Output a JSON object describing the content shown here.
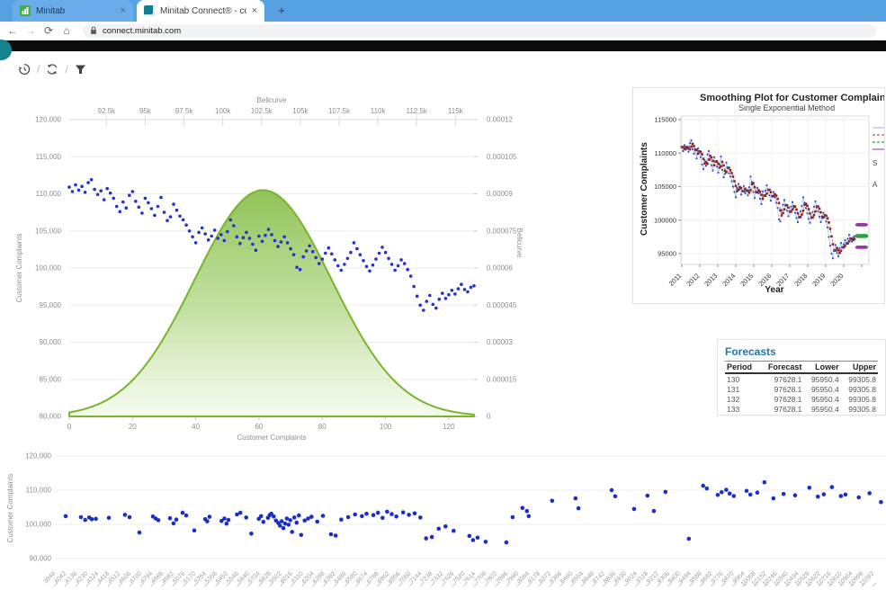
{
  "browser": {
    "tabs": [
      {
        "title": "Minitab"
      },
      {
        "title": "Minitab Connect® - connect.min"
      }
    ],
    "new_tab_label": "+",
    "close_glyph": "×",
    "url": "connect.minitab.com",
    "icons": {
      "back": "←",
      "forward": "→",
      "reload": "⟳",
      "home": "⌂",
      "lock": "lock-icon"
    }
  },
  "toolbar": {
    "icons": [
      "history",
      "refresh",
      "filter"
    ],
    "separator": "/"
  },
  "colors": {
    "tabstrip": "#57a1e3",
    "scatter_point": "#2433c8",
    "bell_stroke": "#79b42e",
    "bell_fill_top": "#8cc152",
    "bell_fill_bottom": "#eef6e2",
    "actual_point": "#2c50c8",
    "fit_point": "#8e2020",
    "forecast_point": "#2f9e44",
    "pi_point": "#9933aa",
    "forecast_title": "#1878be"
  },
  "chart_data": [
    {
      "type": "scatter",
      "name": "bellcurve-and-complaints-scatter",
      "x_top": {
        "label": "Bellcurve",
        "tick_labels": [
          "92.5k",
          "95k",
          "97.5k",
          "100k",
          "102.5k",
          "105k",
          "107.5k",
          "110k",
          "112.5k",
          "115k"
        ],
        "range": [
          90100,
          116200
        ]
      },
      "x_bottom": {
        "label": "Customer Complaints",
        "tick_labels": [
          "0",
          "20",
          "40",
          "60",
          "80",
          "100",
          "120"
        ],
        "range": [
          0,
          128
        ]
      },
      "y_left": {
        "label": "Customer Complaints",
        "tick_labels": [
          "120,000",
          "115,000",
          "110,000",
          "105,000",
          "100,000",
          "95,000",
          "90,000",
          "85,000",
          "80,000"
        ],
        "range": [
          80000,
          120000
        ]
      },
      "y_right": {
        "label": "Bellcurve",
        "tick_labels": [
          "0.00012",
          "0.000105",
          "0.00009",
          "0.000075",
          "0.00006",
          "0.000045",
          "0.00003",
          "0.000015",
          "0"
        ],
        "range": [
          0,
          0.00012
        ]
      },
      "bellcurve": {
        "mean": 102600,
        "sd": 4400,
        "peak_density": 9.15e-05
      },
      "series": {
        "name": "Customer Complaints",
        "values": [
          110900,
          110300,
          111200,
          110500,
          111000,
          110200,
          111500,
          111900,
          110600,
          109900,
          110400,
          109200,
          110700,
          110100,
          109400,
          108300,
          107600,
          108900,
          108100,
          109800,
          110300,
          109000,
          108200,
          107400,
          109400,
          108800,
          108000,
          107100,
          108300,
          109500,
          107500,
          106400,
          106900,
          108600,
          107800,
          107000,
          106500,
          105800,
          105000,
          104200,
          103400,
          104800,
          105400,
          104600,
          103800,
          104300,
          105100,
          104000,
          104500,
          103700,
          104900,
          106500,
          105700,
          104200,
          103300,
          104100,
          104800,
          104000,
          103200,
          102400,
          104300,
          103600,
          104400,
          105200,
          104500,
          103700,
          102900,
          103500,
          104200,
          103400,
          102600,
          101800,
          100100,
          99800,
          101500,
          102300,
          103000,
          102200,
          101400,
          100600,
          101200,
          102000,
          102700,
          101900,
          101100,
          100300,
          99700,
          100500,
          101300,
          102100,
          103400,
          102600,
          101800,
          101000,
          100200,
          99600,
          100400,
          101200,
          102000,
          102800,
          102100,
          101300,
          100500,
          99700,
          100300,
          101100,
          100600,
          99800,
          98900,
          97500,
          96200,
          95000,
          94300,
          95500,
          96300,
          95100,
          94600,
          95800,
          96600,
          95900,
          96400,
          97000,
          96500,
          97200,
          97800,
          97100,
          96800,
          97400,
          97600
        ]
      }
    },
    {
      "type": "line",
      "name": "smoothing-plot",
      "title": "Smoothing Plot for Customer Complaints",
      "subtitle": "Single Exponential Method",
      "xlabel": "Year",
      "ylabel": "Customer Complaints",
      "x_ticks": [
        "2011",
        "2012",
        "2013",
        "2014",
        "2015",
        "2016",
        "2017",
        "2018",
        "2019",
        "2020"
      ],
      "y_ticks": [
        "95000",
        "100000",
        "105000",
        "110000",
        "115000"
      ],
      "series_source": "chart_data.0.series",
      "fits_method": "single_exponential",
      "forecasts": {
        "periods": [
          130,
          131,
          132,
          133
        ],
        "value": 97628.1,
        "lower": 95950.4,
        "upper": 99305.8
      },
      "legend_fragments": [
        "S",
        "A"
      ],
      "legend_colors": [
        "#a9c4e4",
        "#c0504d",
        "#3f9c3f",
        "#a050c8"
      ]
    },
    {
      "type": "table",
      "name": "forecasts-table",
      "title": "Forecasts",
      "columns": [
        "Period",
        "Forecast",
        "Lower",
        "Upper"
      ],
      "rows": [
        [
          "130",
          "97628.1",
          "95950.4",
          "99305.8"
        ],
        [
          "131",
          "97628.1",
          "95950.4",
          "99305.8"
        ],
        [
          "132",
          "97628.1",
          "95950.4",
          "99305.8"
        ],
        [
          "133",
          "97628.1",
          "95950.4",
          "99305.8"
        ]
      ]
    },
    {
      "type": "scatter",
      "name": "bottom-complaints-scatter",
      "ylabel": "Customer Complaints",
      "y_tick_labels": [
        "120,000",
        "110,000",
        "100,000",
        "90,000"
      ],
      "x_tick_labels": [
        3948,
        4042,
        4136,
        4230,
        4324,
        4418,
        4512,
        4606,
        4700,
        4794,
        4888,
        4982,
        5076,
        5170,
        5264,
        5358,
        5452,
        5546,
        5640,
        5734,
        5828,
        5922,
        6016,
        6110,
        6204,
        6298,
        6392,
        6486,
        6580,
        6674,
        6768,
        6862,
        6956,
        7050,
        7144,
        7238,
        7332,
        7426,
        7520,
        7614,
        7708,
        7802,
        7896,
        7990,
        8084,
        8178,
        8272,
        8366,
        8460,
        8554,
        8648,
        8742,
        8836,
        8930,
        9024,
        9118,
        9212,
        9306,
        9400,
        9494,
        9588,
        9682,
        9776,
        9870,
        9964,
        10058,
        10152,
        10246,
        10340,
        10434,
        10528,
        10622,
        10716,
        10810,
        10904,
        10998,
        11092
      ],
      "points": [
        [
          4034,
          102400
        ],
        [
          4168,
          102100
        ],
        [
          4205,
          101300
        ],
        [
          4240,
          102000
        ],
        [
          4262,
          101500
        ],
        [
          4298,
          101600
        ],
        [
          4411,
          101900
        ],
        [
          4552,
          102800
        ],
        [
          4592,
          102100
        ],
        [
          4678,
          97600
        ],
        [
          4796,
          102300
        ],
        [
          4820,
          101700
        ],
        [
          4843,
          101200
        ],
        [
          4945,
          101800
        ],
        [
          4976,
          100300
        ],
        [
          5000,
          101400
        ],
        [
          5055,
          103400
        ],
        [
          5086,
          102600
        ],
        [
          5157,
          98200
        ],
        [
          5252,
          101500
        ],
        [
          5270,
          100900
        ],
        [
          5290,
          102200
        ],
        [
          5395,
          101000
        ],
        [
          5420,
          101700
        ],
        [
          5438,
          100200
        ],
        [
          5455,
          101300
        ],
        [
          5530,
          102900
        ],
        [
          5560,
          103400
        ],
        [
          5610,
          102000
        ],
        [
          5655,
          97300
        ],
        [
          5720,
          101600
        ],
        [
          5740,
          102400
        ],
        [
          5760,
          100700
        ],
        [
          5800,
          101900
        ],
        [
          5815,
          102700
        ],
        [
          5830,
          103100
        ],
        [
          5850,
          102300
        ],
        [
          5870,
          101100
        ],
        [
          5890,
          100400
        ],
        [
          5905,
          99600
        ],
        [
          5920,
          100900
        ],
        [
          5935,
          98900
        ],
        [
          5950,
          100200
        ],
        [
          5965,
          101700
        ],
        [
          5980,
          99900
        ],
        [
          5995,
          101200
        ],
        [
          6010,
          97800
        ],
        [
          6030,
          102000
        ],
        [
          6050,
          100500
        ],
        [
          6070,
          102600
        ],
        [
          6090,
          96900
        ],
        [
          6120,
          101100
        ],
        [
          6150,
          101700
        ],
        [
          6180,
          102200
        ],
        [
          6230,
          100800
        ],
        [
          6280,
          102500
        ],
        [
          6350,
          97100
        ],
        [
          6390,
          96700
        ],
        [
          6440,
          101400
        ],
        [
          6500,
          102100
        ],
        [
          6560,
          102900
        ],
        [
          6620,
          102400
        ],
        [
          6660,
          103100
        ],
        [
          6720,
          102700
        ],
        [
          6760,
          103400
        ],
        [
          6800,
          101900
        ],
        [
          6840,
          103700
        ],
        [
          6880,
          103000
        ],
        [
          6920,
          102300
        ],
        [
          6980,
          103500
        ],
        [
          7030,
          102800
        ],
        [
          7080,
          103200
        ],
        [
          7130,
          102000
        ],
        [
          7180,
          95900
        ],
        [
          7230,
          96300
        ],
        [
          7290,
          98700
        ],
        [
          7350,
          99400
        ],
        [
          7420,
          98100
        ],
        [
          7558,
          96600
        ],
        [
          7590,
          95400
        ],
        [
          7629,
          96100
        ],
        [
          7700,
          94900
        ],
        [
          7880,
          94700
        ],
        [
          7935,
          102100
        ],
        [
          8021,
          104800
        ],
        [
          8060,
          103900
        ],
        [
          8076,
          102400
        ],
        [
          8280,
          106900
        ],
        [
          8484,
          107600
        ],
        [
          8510,
          104700
        ],
        [
          8800,
          110000
        ],
        [
          8830,
          108200
        ],
        [
          8995,
          104500
        ],
        [
          9112,
          108400
        ],
        [
          9168,
          103900
        ],
        [
          9269,
          109500
        ],
        [
          9473,
          95800
        ],
        [
          9598,
          111300
        ],
        [
          9630,
          110500
        ],
        [
          9725,
          108600
        ],
        [
          9760,
          109400
        ],
        [
          9800,
          110100
        ],
        [
          9830,
          109000
        ],
        [
          9866,
          108300
        ],
        [
          9977,
          109800
        ],
        [
          10010,
          108700
        ],
        [
          10071,
          109300
        ],
        [
          10133,
          112300
        ],
        [
          10211,
          107600
        ],
        [
          10300,
          108900
        ],
        [
          10400,
          108500
        ],
        [
          10525,
          110700
        ],
        [
          10600,
          108100
        ],
        [
          10651,
          108800
        ],
        [
          10722,
          110900
        ],
        [
          10800,
          108300
        ],
        [
          10840,
          108700
        ],
        [
          10956,
          107900
        ],
        [
          11050,
          109100
        ],
        [
          11150,
          106500
        ]
      ]
    }
  ]
}
